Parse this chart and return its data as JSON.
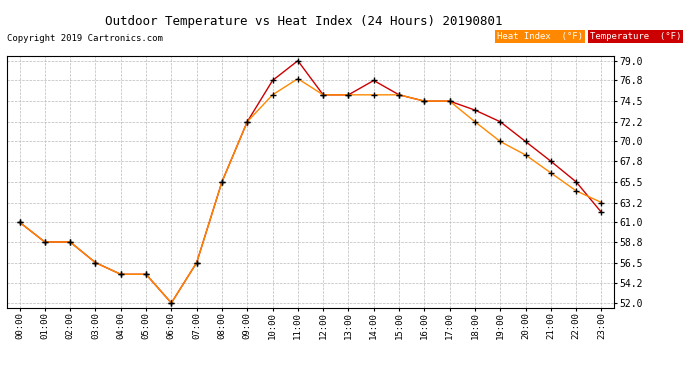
{
  "title": "Outdoor Temperature vs Heat Index (24 Hours) 20190801",
  "copyright": "Copyright 2019 Cartronics.com",
  "x_labels": [
    "00:00",
    "01:00",
    "02:00",
    "03:00",
    "04:00",
    "05:00",
    "06:00",
    "07:00",
    "08:00",
    "09:00",
    "10:00",
    "11:00",
    "12:00",
    "13:00",
    "14:00",
    "15:00",
    "16:00",
    "17:00",
    "18:00",
    "19:00",
    "20:00",
    "21:00",
    "22:00",
    "23:00"
  ],
  "temperature": [
    61.0,
    58.8,
    58.8,
    56.5,
    55.2,
    55.2,
    52.0,
    56.5,
    65.5,
    72.2,
    76.8,
    79.0,
    75.2,
    75.2,
    76.8,
    75.2,
    74.5,
    74.5,
    73.5,
    72.2,
    70.0,
    67.8,
    65.5,
    62.1
  ],
  "heat_index": [
    61.0,
    58.8,
    58.8,
    56.5,
    55.2,
    55.2,
    52.0,
    56.5,
    65.5,
    72.2,
    75.2,
    77.0,
    75.2,
    75.2,
    75.2,
    75.2,
    74.5,
    74.5,
    72.2,
    70.0,
    68.5,
    66.5,
    64.5,
    63.2
  ],
  "temp_color": "#cc0000",
  "heat_color": "#ff8800",
  "ylim_min": 51.5,
  "ylim_max": 79.5,
  "yticks": [
    52.0,
    54.2,
    56.5,
    58.8,
    61.0,
    63.2,
    65.5,
    67.8,
    70.0,
    72.2,
    74.5,
    76.8,
    79.0
  ],
  "bg_color": "#ffffff",
  "grid_color": "#bbbbbb",
  "legend_heat_bg": "#ff8800",
  "legend_temp_bg": "#cc0000",
  "legend_text_color": "#ffffff",
  "legend_heat_label": "Heat Index  (°F)",
  "legend_temp_label": "Temperature  (°F)"
}
